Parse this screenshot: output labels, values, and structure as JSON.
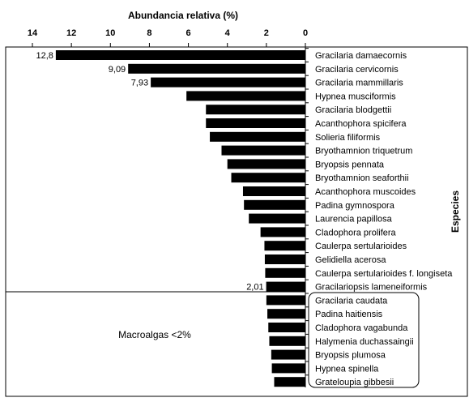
{
  "chart_data": {
    "type": "bar",
    "orientation": "horizontal",
    "x_axis_reversed": true,
    "x_axis_position": "top",
    "title": "Abundancia relativa (%)",
    "ylabel": "Especies",
    "xlim": [
      0,
      14
    ],
    "x_ticks": [
      "14",
      "12",
      "10",
      "8",
      "6",
      "4",
      "2",
      "0"
    ],
    "grid": false,
    "categories": [
      "Gracilaria damaecornis",
      "Gracilaria cervicornis",
      "Gracilaria mammillaris",
      "Hypnea musciformis",
      "Gracilaria blodgettii",
      "Acanthophora spicifera",
      "Solieria filiformis",
      "Bryothamnion triquetrum",
      "Bryopsis pennata",
      "Bryothamnion seaforthii",
      "Acanthophora muscoides",
      "Padina gymnospora",
      "Laurencia papillosa",
      "Cladophora prolifera",
      "Caulerpa sertularioides",
      "Gelidiella acerosa",
      "Caulerpa sertularioides f. longiseta",
      "Gracilariopsis lameneiformis",
      "Gracilaria caudata",
      "Padina haitiensis",
      "Cladophora vagabunda",
      "Halymenia duchassaingii",
      "Bryopsis plumosa",
      "Hypnea spinella",
      "Grateloupia gibbesii"
    ],
    "values": [
      12.8,
      9.09,
      7.93,
      6.1,
      5.1,
      5.1,
      4.9,
      4.3,
      4.0,
      3.8,
      3.2,
      3.15,
      2.9,
      2.3,
      2.1,
      2.08,
      2.06,
      2.01,
      2.0,
      1.95,
      1.9,
      1.85,
      1.75,
      1.72,
      1.6
    ],
    "data_labels": [
      {
        "index": 0,
        "text": "12,8"
      },
      {
        "index": 1,
        "text": "9,09"
      },
      {
        "index": 2,
        "text": "7,93"
      },
      {
        "index": 17,
        "text": "2,01"
      }
    ],
    "annotation": "Macroalgas <2%",
    "bar_color": "#000000"
  }
}
